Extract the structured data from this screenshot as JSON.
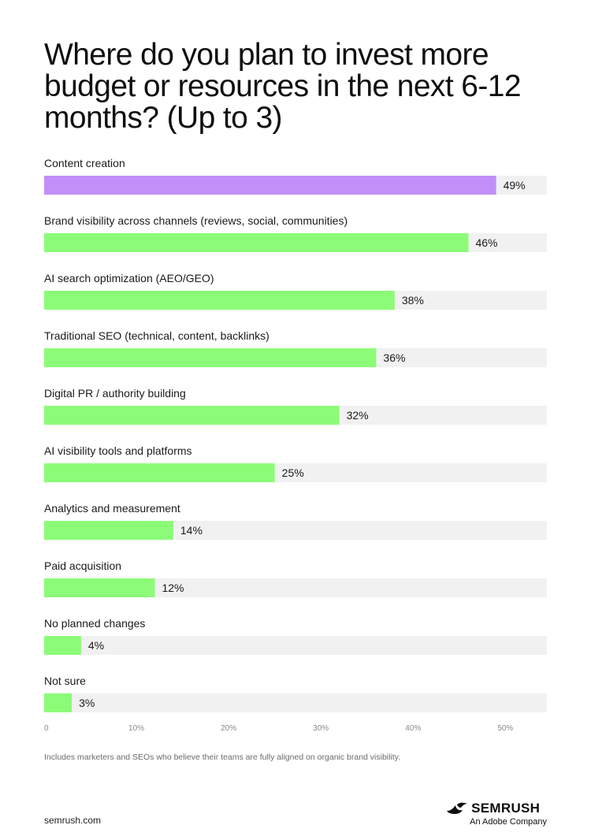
{
  "header": {
    "title": "Where do you plan to invest more budget or resources in the next 6-12 months? (Up to 3)"
  },
  "colors": {
    "highlight": "#c18ff8",
    "bar": "#8cfc78",
    "track": "#f1f1f1"
  },
  "chart_data": {
    "type": "bar",
    "orientation": "horizontal",
    "categories": [
      "Content creation",
      "Brand visibility across channels (reviews, social, communities)",
      "AI search optimization (AEO/GEO)",
      "Traditional SEO (technical, content, backlinks)",
      "Digital PR / authority building",
      "AI visibility tools and platforms",
      "Analytics and measurement",
      "Paid acquisition",
      "No planned changes",
      "Not sure"
    ],
    "values": [
      49,
      46,
      38,
      36,
      32,
      25,
      14,
      12,
      4,
      3
    ],
    "value_labels": [
      "49%",
      "46%",
      "38%",
      "36%",
      "32%",
      "25%",
      "14%",
      "12%",
      "4%",
      "3%"
    ],
    "highlighted_index": 0,
    "xlim": [
      0,
      54.5
    ],
    "x_ticks": [
      0,
      10,
      20,
      30,
      40,
      50
    ],
    "x_tick_labels": [
      "0",
      "10%",
      "20%",
      "30%",
      "40%",
      "50%"
    ],
    "grid": false
  },
  "footer": {
    "note": "Includes marketers and SEOs who believe their teams are fully aligned on organic brand visibility.",
    "site": "semrush.com",
    "brand_name": "SEMRUSH",
    "brand_sub": "An Adobe Company",
    "brand_icon": "semrush-flame-icon"
  }
}
